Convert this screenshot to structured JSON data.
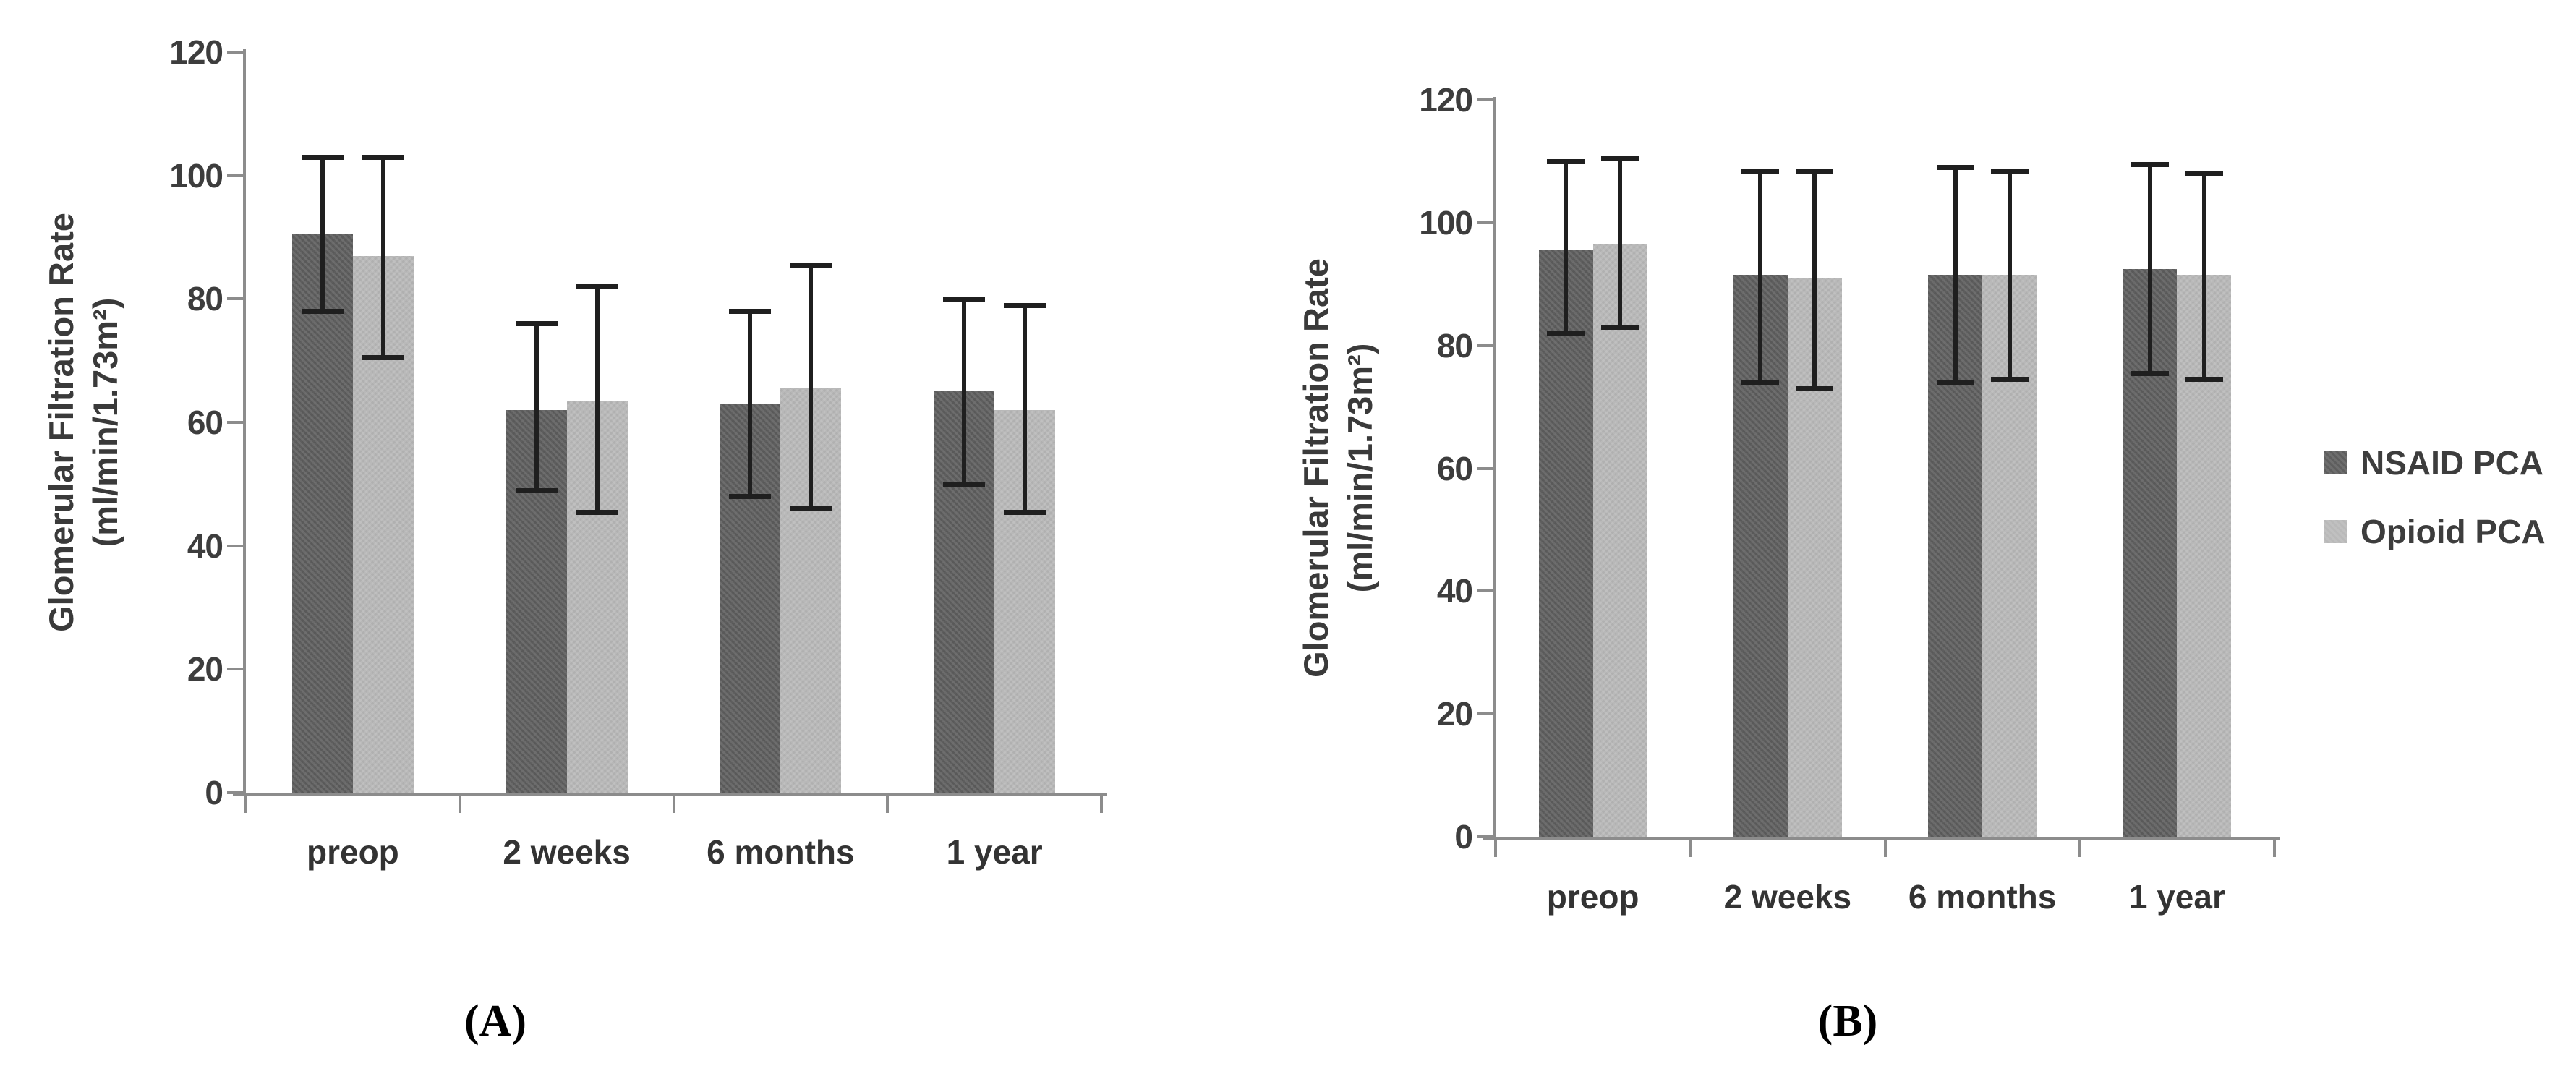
{
  "figure": {
    "background": "#ffffff",
    "axis_color": "#8c8c8c",
    "error_bar_color": "#1f1f1f",
    "text_color": "#3a3a3a",
    "series_colors": {
      "nsaid": "#5e5e5e",
      "opioid": "#b9b9b9"
    },
    "legend": {
      "position": "right-middle",
      "items": [
        {
          "label": "NSAID PCA",
          "color": "#5e5e5e"
        },
        {
          "label": "Opioid PCA",
          "color": "#b9b9b9"
        }
      ]
    }
  },
  "chart_data": [
    {
      "id": "A",
      "type": "bar",
      "caption": "(A)",
      "ylabel_line1": "Glomerular Filtration Rate",
      "ylabel_line2": "(ml/min/1.73m²)",
      "xlabel": "",
      "categories": [
        "preop",
        "2 weeks",
        "6 months",
        "1 year"
      ],
      "yticks": [
        0,
        20,
        40,
        60,
        80,
        100,
        120
      ],
      "ylim": [
        0,
        120
      ],
      "grid": false,
      "legend_position": "none",
      "series": [
        {
          "name": "NSAID PCA",
          "color": "#5e5e5e",
          "values": [
            90.5,
            62,
            63,
            65
          ],
          "err_low": [
            78,
            49,
            48,
            50
          ],
          "err_high": [
            103,
            76,
            78,
            80
          ]
        },
        {
          "name": "Opioid PCA",
          "color": "#b9b9b9",
          "values": [
            87,
            63.5,
            65.5,
            62
          ],
          "err_low": [
            70.5,
            45.5,
            46,
            45.5
          ],
          "err_high": [
            103,
            82,
            85.5,
            79
          ]
        }
      ]
    },
    {
      "id": "B",
      "type": "bar",
      "caption": "(B)",
      "ylabel_line1": "Glomerular Filtration Rate",
      "ylabel_line2": "(ml/min/1.73m²)",
      "xlabel": "",
      "categories": [
        "preop",
        "2 weeks",
        "6 months",
        "1 year"
      ],
      "yticks": [
        0,
        20,
        40,
        60,
        80,
        100,
        120
      ],
      "ylim": [
        0,
        120
      ],
      "grid": false,
      "legend_position": "right",
      "series": [
        {
          "name": "NSAID PCA",
          "color": "#5e5e5e",
          "values": [
            95.5,
            91.5,
            91.5,
            92.5
          ],
          "err_low": [
            82,
            74,
            74,
            75.5
          ],
          "err_high": [
            110,
            108.5,
            109,
            109.5
          ]
        },
        {
          "name": "Opioid PCA",
          "color": "#b9b9b9",
          "values": [
            96.5,
            91,
            91.5,
            91.5
          ],
          "err_low": [
            83,
            73,
            74.5,
            74.5
          ],
          "err_high": [
            110.5,
            108.5,
            108.5,
            108
          ]
        }
      ]
    }
  ]
}
